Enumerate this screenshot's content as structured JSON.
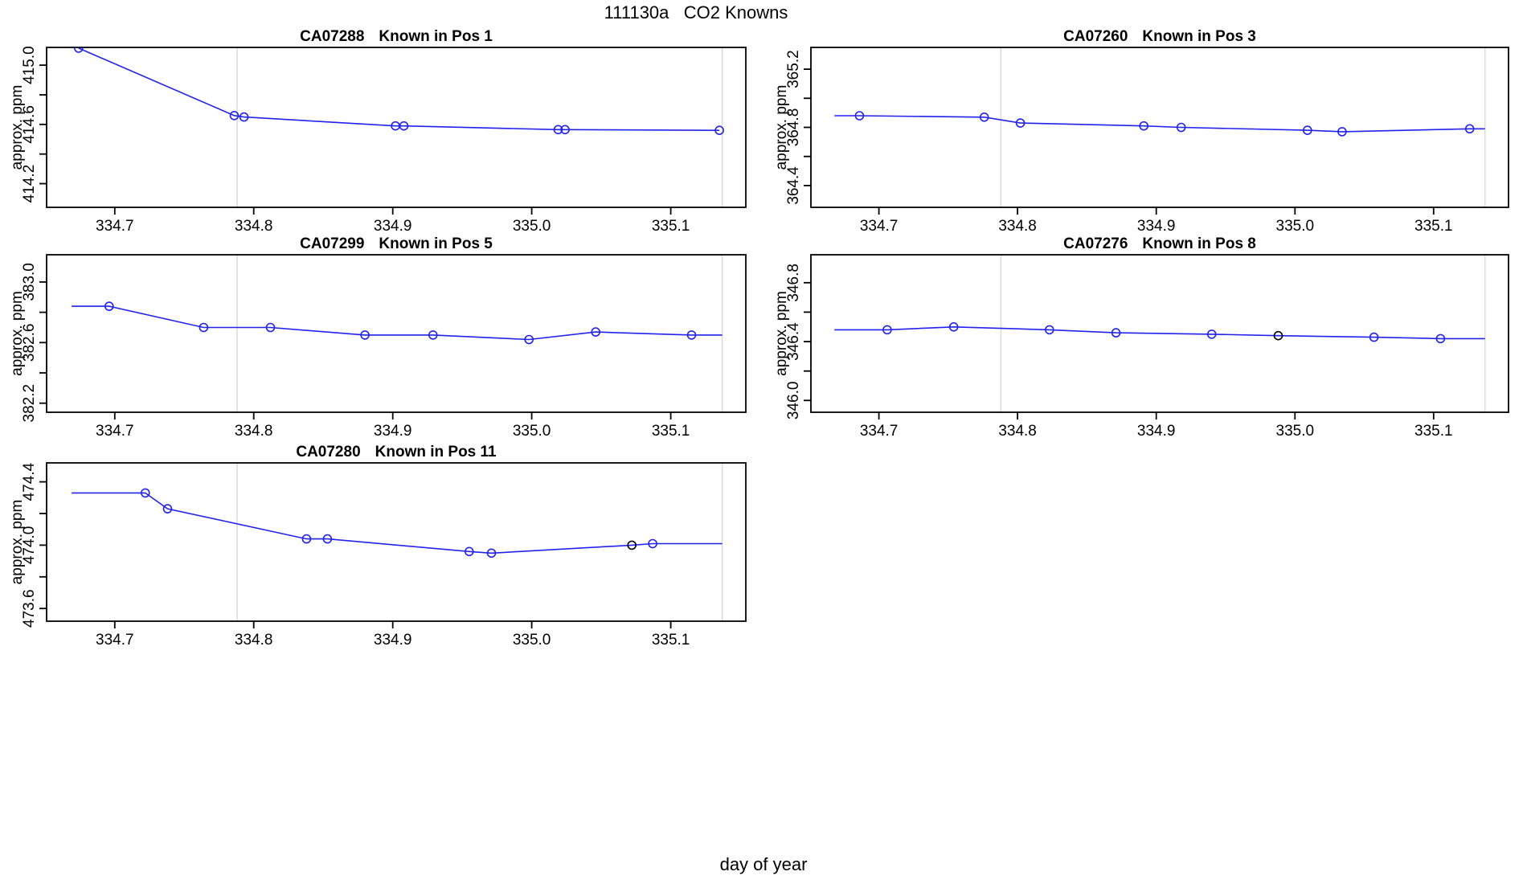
{
  "chart_data": {
    "type": "line",
    "figure_title": "111130a   CO2 Knowns",
    "colors": {
      "line": "#2222EE",
      "marker_black": "#000000",
      "grid": "#DCDCDC",
      "axis": "#000000",
      "background": "#FFFFFF"
    },
    "shared_x": {
      "label": "day of year",
      "xlim": [
        334.651,
        335.154
      ],
      "ticks": [
        334.7,
        334.8,
        334.9,
        335.0,
        335.1
      ],
      "tick_labels": [
        "334.7",
        "334.8",
        "334.9",
        "335.0",
        "335.1"
      ],
      "grid_x": [
        334.788,
        335.137
      ]
    },
    "plots": [
      {
        "id": "CA07288",
        "position_label": "Known in Pos 1",
        "ylabel": "approx. ppm",
        "ylim": [
          414.04,
          415.12
        ],
        "yticks": [
          414.2,
          414.4,
          414.6,
          414.8,
          415.0
        ],
        "ytick_labels": [
          "414.2",
          "",
          "414.6",
          "",
          "415.0"
        ],
        "x": [
          334.674,
          334.786,
          334.793,
          334.902,
          334.908,
          335.019,
          335.024,
          335.135
        ],
        "y": [
          415.115,
          414.66,
          414.65,
          414.59,
          414.59,
          414.565,
          414.565,
          414.56
        ],
        "markers": [
          "circle-blue",
          "circle-blue",
          "circle-blue",
          "circle-blue",
          "circle-blue",
          "circle-blue",
          "circle-blue",
          "circle-blue"
        ]
      },
      {
        "id": "CA07260",
        "position_label": "Known in Pos 3",
        "ylabel": "approx. ppm",
        "ylim": [
          364.25,
          365.35
        ],
        "yticks": [
          364.4,
          364.6,
          364.8,
          365.0,
          365.2
        ],
        "ytick_labels": [
          "364.4",
          "",
          "364.8",
          "",
          "365.2"
        ],
        "x": [
          334.668,
          334.686,
          334.776,
          334.802,
          334.891,
          334.918,
          335.009,
          335.034,
          335.126,
          335.137
        ],
        "y": [
          364.88,
          364.88,
          364.87,
          364.83,
          364.81,
          364.8,
          364.78,
          364.77,
          364.79,
          364.79
        ],
        "markers": [
          "none",
          "circle-blue",
          "circle-blue",
          "circle-blue",
          "circle-blue",
          "circle-blue",
          "circle-blue",
          "circle-blue",
          "circle-blue",
          "none"
        ]
      },
      {
        "id": "CA07299",
        "position_label": "Known in Pos 5",
        "ylabel": "approx. ppm",
        "ylim": [
          382.14,
          383.18
        ],
        "yticks": [
          382.2,
          382.4,
          382.6,
          382.8,
          383.0
        ],
        "ytick_labels": [
          "382.2",
          "",
          "382.6",
          "",
          "383.0"
        ],
        "x": [
          334.669,
          334.696,
          334.764,
          334.812,
          334.88,
          334.929,
          334.998,
          335.046,
          335.115,
          335.137
        ],
        "y": [
          382.84,
          382.84,
          382.7,
          382.7,
          382.65,
          382.65,
          382.62,
          382.67,
          382.65,
          382.65
        ],
        "markers": [
          "none",
          "circle-blue",
          "circle-blue",
          "circle-blue",
          "circle-blue",
          "circle-blue",
          "circle-blue",
          "circle-blue",
          "circle-blue",
          "none"
        ]
      },
      {
        "id": "CA07276",
        "position_label": "Known in Pos 8",
        "ylabel": "approx. ppm",
        "ylim": [
          345.92,
          346.99
        ],
        "yticks": [
          346.0,
          346.2,
          346.4,
          346.6,
          346.8
        ],
        "ytick_labels": [
          "346.0",
          "",
          "346.4",
          "",
          "346.8"
        ],
        "x": [
          334.668,
          334.706,
          334.754,
          334.823,
          334.871,
          334.94,
          334.988,
          335.057,
          335.105,
          335.137
        ],
        "y": [
          346.48,
          346.48,
          346.5,
          346.48,
          346.46,
          346.45,
          346.44,
          346.43,
          346.42,
          346.42
        ],
        "markers": [
          "none",
          "circle-blue",
          "circle-blue",
          "circle-blue",
          "circle-blue",
          "circle-blue",
          "circle-black",
          "circle-blue",
          "circle-blue",
          "none"
        ]
      },
      {
        "id": "CA07280",
        "position_label": "Known in Pos 11",
        "ylabel": "approx. ppm",
        "ylim": [
          473.52,
          474.52
        ],
        "yticks": [
          473.6,
          473.8,
          474.0,
          474.2,
          474.4
        ],
        "ytick_labels": [
          "473.6",
          "",
          "474.0",
          "",
          "474.4"
        ],
        "x": [
          334.669,
          334.722,
          334.738,
          334.838,
          334.853,
          334.955,
          334.971,
          335.072,
          335.087,
          335.137
        ],
        "y": [
          474.33,
          474.33,
          474.23,
          474.04,
          474.04,
          473.96,
          473.95,
          474.0,
          474.01,
          474.01
        ],
        "markers": [
          "none",
          "circle-blue",
          "circle-blue",
          "circle-blue",
          "circle-blue",
          "circle-blue",
          "circle-blue",
          "circle-black",
          "circle-blue",
          "none"
        ]
      }
    ]
  }
}
